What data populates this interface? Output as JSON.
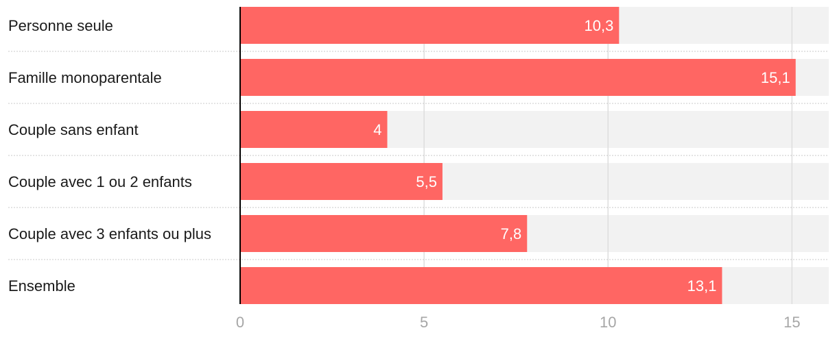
{
  "chart_data": {
    "type": "bar",
    "orientation": "horizontal",
    "categories": [
      "Personne seule",
      "Famille monoparentale",
      "Couple sans enfant",
      "Couple avec 1 ou 2 enfants",
      "Couple avec 3 enfants ou plus",
      "Ensemble"
    ],
    "values": [
      10.3,
      15.1,
      4,
      5.5,
      7.8,
      13.1
    ],
    "value_labels": [
      "10,3",
      "15,1",
      "4",
      "5,5",
      "7,8",
      "13,1"
    ],
    "xlim": [
      0,
      16
    ],
    "xticks": [
      0,
      5,
      10,
      15
    ],
    "xtick_labels": [
      "0",
      "5",
      "10",
      "15"
    ],
    "title": "",
    "xlabel": "",
    "ylabel": "",
    "grid": true,
    "legend": "none",
    "colors": {
      "bar": "#ff6663",
      "track": "#f2f2f2",
      "grid": "#dddddd",
      "axis": "#000000",
      "label_text": "#1a1a1a",
      "value_text": "#ffffff",
      "tick_text": "#a6a6a6",
      "separator": "#c8c8c8"
    }
  }
}
